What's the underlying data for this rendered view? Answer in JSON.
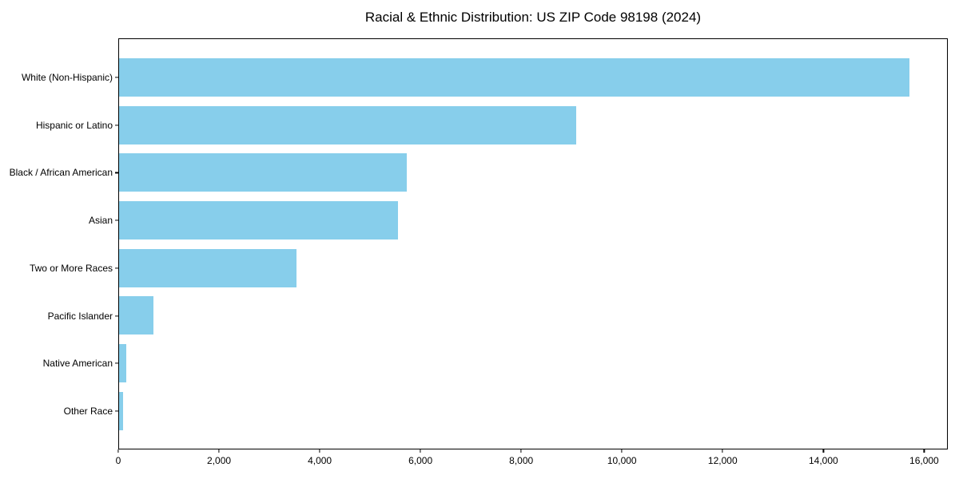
{
  "chart_data": {
    "type": "bar",
    "orientation": "horizontal",
    "title": "Racial & Ethnic Distribution: US ZIP Code 98198 (2024)",
    "categories": [
      "White (Non-Hispanic)",
      "Hispanic or Latino",
      "Black / African American",
      "Asian",
      "Two or More Races",
      "Pacific Islander",
      "Native American",
      "Other Race"
    ],
    "values": [
      15700,
      9080,
      5710,
      5530,
      3530,
      690,
      140,
      75
    ],
    "xlabel": "",
    "ylabel": "",
    "xlim": [
      0,
      16470
    ],
    "x_ticks": [
      0,
      2000,
      4000,
      6000,
      8000,
      10000,
      12000,
      14000,
      16000
    ],
    "x_tick_labels": [
      "0",
      "2,000",
      "4,000",
      "6,000",
      "8,000",
      "10,000",
      "12,000",
      "14,000",
      "16,000"
    ],
    "bar_color": "#87CEEB",
    "frame_color": "#000000",
    "grid": false,
    "legend": null
  }
}
